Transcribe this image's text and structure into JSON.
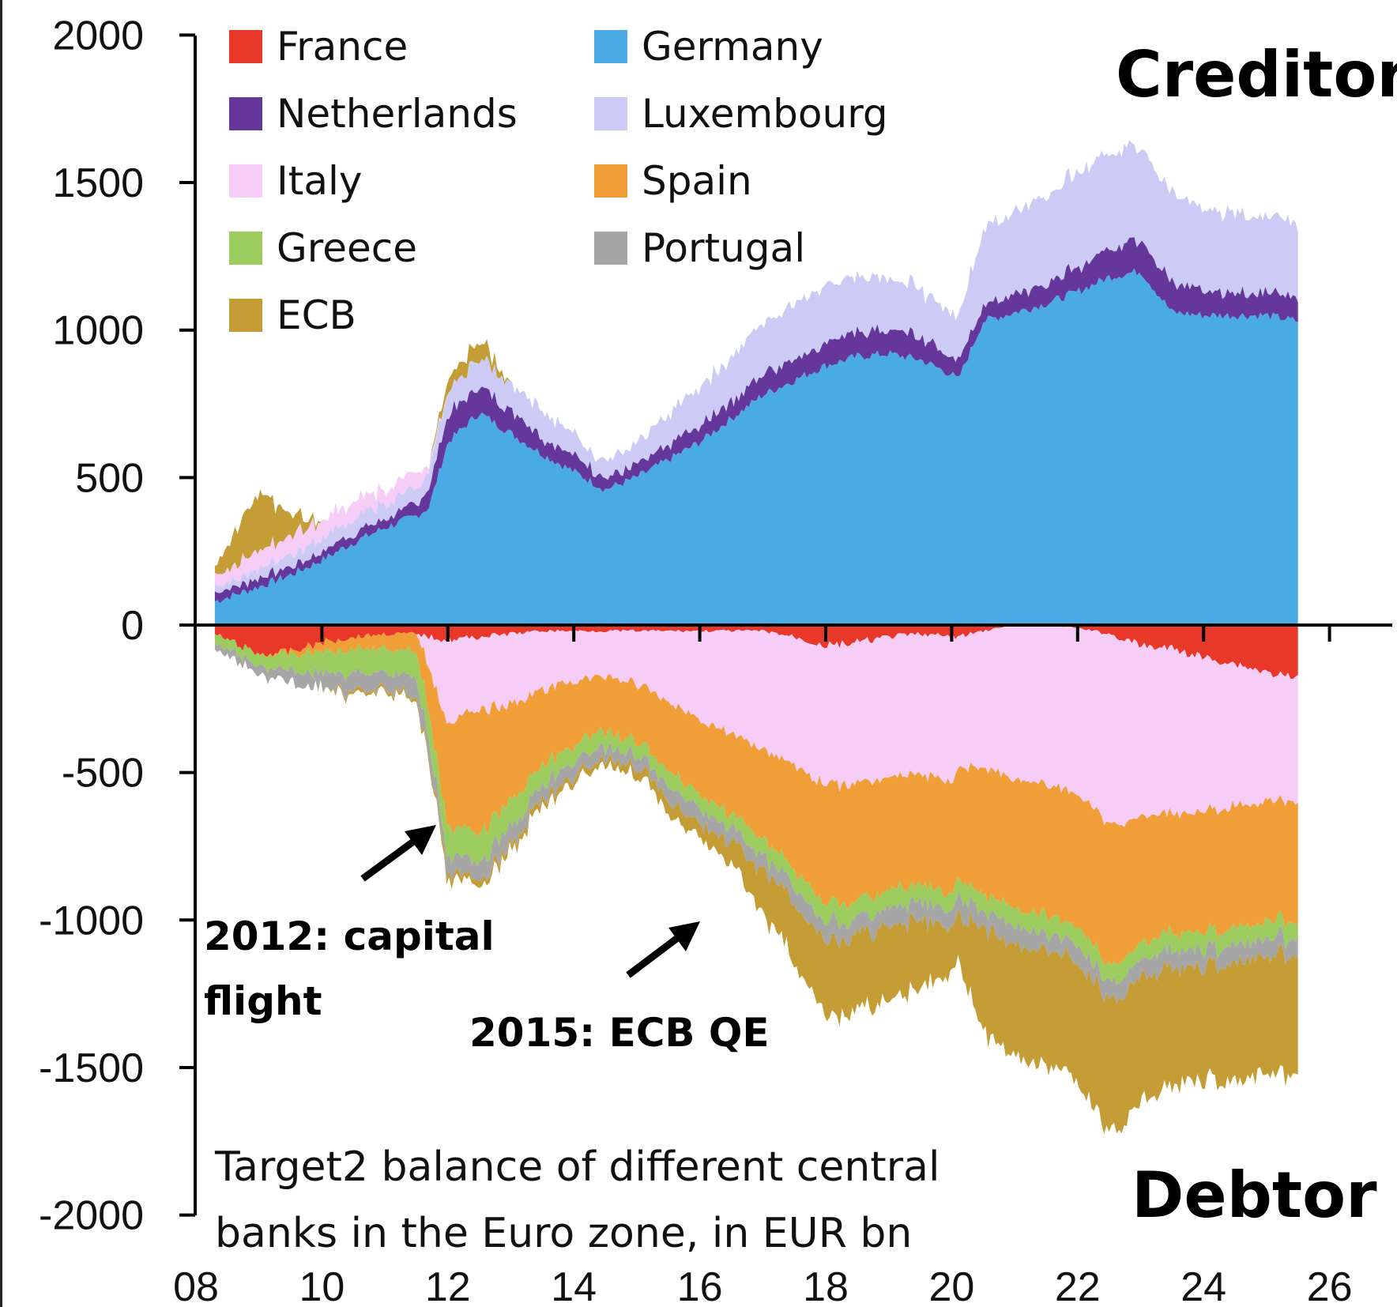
{
  "chart_data": {
    "type": "area",
    "stacked": true,
    "caption": [
      "Target2 balance of different central",
      "banks in the Euro zone, in EUR bn"
    ],
    "labels": {
      "top": "Creditor",
      "bottom": "Debtor"
    },
    "annotations": [
      {
        "lines": [
          "2012: capital",
          "flight"
        ],
        "x": 2011.7,
        "y": -700
      },
      {
        "lines": [
          "2015: ECB QE"
        ],
        "x": 2016,
        "y": -1000
      }
    ],
    "xlim": [
      2008,
      2026
    ],
    "ylim": [
      -2000,
      2000
    ],
    "x_ticks": [
      "08",
      "10",
      "12",
      "14",
      "16",
      "18",
      "20",
      "22",
      "24",
      "26"
    ],
    "y_ticks": [
      "2000",
      "1500",
      "1000",
      "500",
      "0",
      "-500",
      "-1000",
      "-1500",
      "-2000"
    ],
    "legend": [
      {
        "name": "France",
        "color": "#e8382a"
      },
      {
        "name": "Germany",
        "color": "#4aabe4"
      },
      {
        "name": "Netherlands",
        "color": "#66379a"
      },
      {
        "name": "Luxembourg",
        "color": "#cbcbf5"
      },
      {
        "name": "Italy",
        "color": "#f6cdf6"
      },
      {
        "name": "Spain",
        "color": "#f09e38"
      },
      {
        "name": "Greece",
        "color": "#9ccc5e"
      },
      {
        "name": "Portugal",
        "color": "#a6a6a6"
      },
      {
        "name": "ECB",
        "color": "#c49d36"
      }
    ],
    "x": [
      2008.3,
      2009,
      2009.5,
      2010,
      2010.5,
      2011,
      2011.5,
      2011.7,
      2012,
      2012.5,
      2013,
      2013.5,
      2014,
      2014.5,
      2015,
      2015.5,
      2016,
      2016.5,
      2017,
      2017.5,
      2018,
      2018.5,
      2019,
      2019.5,
      2020,
      2020.1,
      2020.5,
      2021,
      2021.5,
      2022,
      2022.5,
      2023,
      2023.5,
      2024,
      2024.5,
      2025,
      2025.5
    ],
    "positive_series": [
      {
        "name": "Germany",
        "values": [
          80,
          130,
          170,
          220,
          280,
          330,
          370,
          400,
          620,
          720,
          650,
          580,
          520,
          460,
          500,
          560,
          620,
          700,
          780,
          830,
          880,
          910,
          920,
          900,
          850,
          830,
          1030,
          1060,
          1090,
          1130,
          1180,
          1200,
          1060,
          1050,
          1050,
          1050,
          1030
        ]
      },
      {
        "name": "Netherlands",
        "values": [
          30,
          30,
          30,
          30,
          30,
          30,
          40,
          60,
          90,
          100,
          80,
          60,
          50,
          40,
          40,
          50,
          60,
          60,
          70,
          70,
          80,
          80,
          80,
          80,
          60,
          60,
          60,
          60,
          70,
          80,
          100,
          110,
          100,
          80,
          80,
          80,
          70
        ]
      },
      {
        "name": "Luxembourg",
        "values": [
          20,
          30,
          40,
          50,
          50,
          50,
          50,
          60,
          80,
          100,
          100,
          90,
          70,
          60,
          70,
          100,
          130,
          150,
          170,
          190,
          200,
          190,
          180,
          160,
          150,
          150,
          260,
          280,
          300,
          320,
          330,
          320,
          300,
          280,
          270,
          260,
          250
        ]
      },
      {
        "name": "Italy",
        "values": [
          40,
          60,
          70,
          60,
          60,
          50,
          60,
          20,
          0,
          0,
          0,
          0,
          0,
          0,
          0,
          0,
          0,
          0,
          0,
          0,
          0,
          0,
          0,
          0,
          0,
          0,
          0,
          0,
          0,
          0,
          0,
          0,
          0,
          0,
          0,
          0,
          0
        ]
      },
      {
        "name": "ECB",
        "values": [
          30,
          200,
          70,
          0,
          0,
          0,
          0,
          0,
          40,
          60,
          0,
          0,
          0,
          0,
          0,
          0,
          0,
          0,
          0,
          0,
          0,
          0,
          0,
          0,
          0,
          0,
          0,
          0,
          0,
          0,
          0,
          0,
          0,
          0,
          0,
          0,
          0
        ]
      }
    ],
    "negative_series": [
      {
        "name": "France",
        "values": [
          -30,
          -100,
          -90,
          -60,
          -40,
          -30,
          -30,
          -40,
          -50,
          -40,
          -30,
          -20,
          -20,
          -20,
          -20,
          -20,
          -20,
          -20,
          -20,
          -40,
          -70,
          -60,
          -40,
          -30,
          -40,
          -40,
          -20,
          0,
          0,
          -10,
          -30,
          -70,
          -80,
          -110,
          -130,
          -160,
          -180
        ]
      },
      {
        "name": "Italy",
        "values": [
          0,
          0,
          0,
          0,
          0,
          0,
          0,
          100,
          280,
          250,
          240,
          200,
          170,
          150,
          180,
          240,
          300,
          350,
          400,
          430,
          470,
          480,
          480,
          470,
          500,
          450,
          460,
          520,
          540,
          560,
          650,
          580,
          560,
          520,
          480,
          440,
          420
        ]
      },
      {
        "name": "Spain",
        "values": [
          0,
          0,
          10,
          30,
          40,
          50,
          60,
          150,
          350,
          420,
          320,
          260,
          220,
          180,
          200,
          230,
          250,
          280,
          300,
          350,
          400,
          400,
          380,
          380,
          380,
          380,
          430,
          440,
          440,
          450,
          480,
          430,
          400,
          410,
          410,
          400,
          400
        ]
      },
      {
        "name": "Greece",
        "values": [
          30,
          40,
          60,
          70,
          80,
          80,
          90,
          100,
          100,
          100,
          90,
          70,
          60,
          50,
          50,
          50,
          50,
          50,
          60,
          60,
          60,
          60,
          60,
          60,
          60,
          60,
          60,
          60,
          60,
          60,
          60,
          60,
          60,
          60,
          60,
          60,
          60
        ]
      },
      {
        "name": "Portugal",
        "values": [
          20,
          30,
          40,
          50,
          60,
          60,
          60,
          60,
          60,
          60,
          60,
          50,
          50,
          40,
          40,
          50,
          50,
          50,
          50,
          60,
          60,
          60,
          60,
          60,
          60,
          60,
          60,
          60,
          60,
          60,
          60,
          60,
          60,
          60,
          60,
          60,
          60
        ]
      },
      {
        "name": "ECB",
        "values": [
          0,
          0,
          0,
          0,
          10,
          10,
          10,
          10,
          20,
          20,
          20,
          20,
          20,
          20,
          30,
          40,
          50,
          80,
          150,
          200,
          250,
          260,
          250,
          230,
          150,
          150,
          350,
          380,
          390,
          400,
          450,
          420,
          400,
          380,
          400,
          400,
          400
        ]
      }
    ]
  }
}
